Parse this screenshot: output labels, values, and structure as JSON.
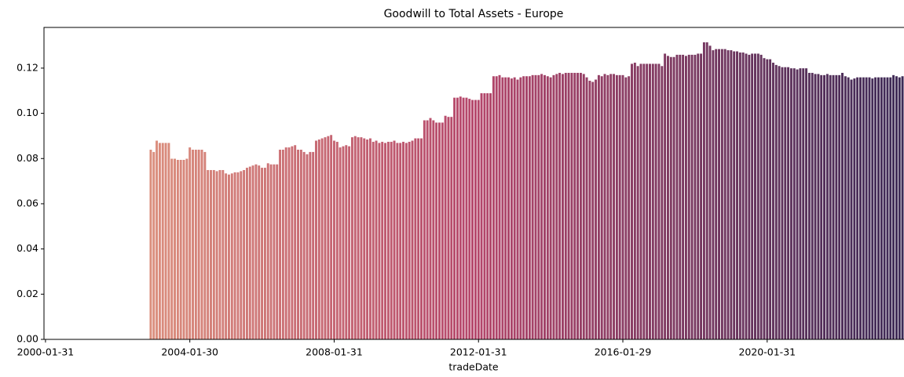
{
  "chart_data": {
    "type": "bar",
    "title": "Goodwill to Total Assets - Europe",
    "x_label": "tradeDate",
    "categories": [
      "2000-01-31",
      null,
      null,
      null,
      null,
      null,
      null,
      null,
      null,
      null,
      null,
      null,
      null,
      null,
      null,
      null,
      null,
      null,
      null,
      null,
      null,
      null,
      null,
      null,
      null,
      null,
      null,
      null,
      null,
      null,
      null,
      null,
      null,
      null,
      null,
      null,
      null,
      null,
      null,
      null,
      null,
      null,
      null,
      null,
      null,
      null,
      null,
      null,
      "2004-01-30",
      null,
      null,
      null,
      null,
      null,
      null,
      null,
      null,
      null,
      null,
      null,
      null,
      null,
      null,
      null,
      null,
      null,
      null,
      null,
      null,
      null,
      null,
      null,
      null,
      null,
      null,
      null,
      null,
      null,
      null,
      null,
      null,
      null,
      null,
      null,
      null,
      null,
      null,
      null,
      null,
      null,
      null,
      null,
      null,
      null,
      null,
      null,
      "2008-01-31",
      null,
      null,
      null,
      null,
      null,
      null,
      null,
      null,
      null,
      null,
      null,
      null,
      null,
      null,
      null,
      null,
      null,
      null,
      null,
      null,
      null,
      null,
      null,
      null,
      null,
      null,
      null,
      null,
      null,
      null,
      null,
      null,
      null,
      null,
      null,
      null,
      null,
      null,
      null,
      null,
      null,
      null,
      null,
      null,
      null,
      null,
      null,
      "2012-01-31",
      null,
      null,
      null,
      null,
      null,
      null,
      null,
      null,
      null,
      null,
      null,
      null,
      null,
      null,
      null,
      null,
      null,
      null,
      null,
      null,
      null,
      null,
      null,
      null,
      null,
      null,
      null,
      null,
      null,
      null,
      null,
      null,
      null,
      null,
      null,
      null,
      null,
      null,
      null,
      null,
      null,
      null,
      null,
      null,
      null,
      null,
      null,
      "2016-01-29",
      null,
      null,
      null,
      null,
      null,
      null,
      null,
      null,
      null,
      null,
      null,
      null,
      null,
      null,
      null,
      null,
      null,
      null,
      null,
      null,
      null,
      null,
      null,
      null,
      null,
      null,
      null,
      null,
      null,
      null,
      null,
      null,
      null,
      null,
      null,
      null,
      null,
      null,
      null,
      null,
      null,
      null,
      null,
      null,
      null,
      null,
      null,
      "2020-01-31",
      null,
      null,
      null,
      null,
      null,
      null,
      null,
      null,
      null,
      null,
      null,
      null,
      null,
      null,
      null,
      null,
      null,
      null,
      null,
      null,
      null,
      null,
      null,
      null,
      null,
      null,
      null,
      null,
      null,
      null,
      null,
      null,
      null,
      null,
      null,
      null,
      null,
      null,
      null,
      null,
      null,
      null,
      null,
      null,
      null
    ],
    "values": [
      null,
      null,
      null,
      null,
      null,
      null,
      null,
      null,
      null,
      null,
      null,
      null,
      null,
      null,
      null,
      null,
      null,
      null,
      null,
      null,
      null,
      null,
      null,
      null,
      null,
      null,
      null,
      null,
      null,
      null,
      null,
      null,
      null,
      null,
      null,
      0.084,
      0.083,
      0.088,
      0.087,
      0.087,
      0.087,
      0.087,
      0.08,
      0.08,
      0.0795,
      0.0795,
      0.0795,
      0.08,
      0.085,
      0.084,
      0.084,
      0.084,
      0.084,
      0.083,
      0.075,
      0.075,
      0.075,
      0.0745,
      0.075,
      0.075,
      0.0735,
      0.073,
      0.0735,
      0.074,
      0.074,
      0.0745,
      0.075,
      0.076,
      0.0765,
      0.077,
      0.0775,
      0.077,
      0.076,
      0.076,
      0.078,
      0.0775,
      0.0775,
      0.0775,
      0.084,
      0.084,
      0.085,
      0.085,
      0.0855,
      0.086,
      0.084,
      0.084,
      0.083,
      0.082,
      0.083,
      0.083,
      0.088,
      0.0885,
      0.089,
      0.0895,
      0.09,
      0.0905,
      0.088,
      0.0875,
      0.085,
      0.0855,
      0.086,
      0.0855,
      0.0895,
      0.09,
      0.0895,
      0.0895,
      0.089,
      0.0885,
      0.089,
      0.0875,
      0.088,
      0.087,
      0.0875,
      0.087,
      0.0875,
      0.0875,
      0.088,
      0.087,
      0.087,
      0.0875,
      0.087,
      0.0875,
      0.088,
      0.089,
      0.089,
      0.089,
      0.097,
      0.097,
      0.098,
      0.097,
      0.096,
      0.096,
      0.096,
      0.099,
      0.0985,
      0.0985,
      0.107,
      0.107,
      0.1075,
      0.107,
      0.107,
      0.1065,
      0.106,
      0.106,
      0.106,
      0.109,
      0.109,
      0.109,
      0.109,
      0.1165,
      0.1165,
      0.117,
      0.116,
      0.116,
      0.116,
      0.1155,
      0.116,
      0.115,
      0.116,
      0.1165,
      0.1165,
      0.1165,
      0.117,
      0.117,
      0.117,
      0.1175,
      0.117,
      0.1165,
      0.116,
      0.117,
      0.1175,
      0.118,
      0.1175,
      0.118,
      0.118,
      0.118,
      0.118,
      0.118,
      0.118,
      0.1175,
      0.116,
      0.1145,
      0.114,
      0.115,
      0.117,
      0.1165,
      0.1175,
      0.117,
      0.1175,
      0.1175,
      0.117,
      0.117,
      0.117,
      0.116,
      0.1165,
      0.122,
      0.1225,
      0.121,
      0.122,
      0.122,
      0.122,
      0.122,
      0.122,
      0.122,
      0.122,
      0.121,
      0.1265,
      0.1255,
      0.125,
      0.125,
      0.126,
      0.126,
      0.126,
      0.1255,
      0.126,
      0.126,
      0.126,
      0.1265,
      0.1265,
      0.1315,
      0.1315,
      0.13,
      0.128,
      0.1285,
      0.1285,
      0.1285,
      0.1285,
      0.128,
      0.128,
      0.1275,
      0.1275,
      0.127,
      0.127,
      0.1265,
      0.126,
      0.1265,
      0.1265,
      0.1265,
      0.126,
      0.1245,
      0.124,
      0.124,
      0.1225,
      0.1215,
      0.121,
      0.1205,
      0.1205,
      0.1205,
      0.12,
      0.12,
      0.1195,
      0.12,
      0.12,
      0.12,
      0.118,
      0.118,
      0.1175,
      0.1175,
      0.117,
      0.117,
      0.1175,
      0.117,
      0.117,
      0.117,
      0.117,
      0.118,
      0.1165,
      0.116,
      0.115,
      0.1155,
      0.116,
      0.116,
      0.116,
      0.116,
      0.116,
      0.1155,
      0.116,
      0.116,
      0.116,
      0.116,
      0.116,
      0.116,
      0.117,
      0.1165,
      0.116,
      0.1165
    ],
    "palette": [
      "#e7a582",
      "#b5476b",
      "#3d2a56"
    ],
    "ylim": [
      0,
      0.138
    ],
    "yticks": [
      {
        "value": 0,
        "label": "0.00"
      },
      {
        "value": 0.02,
        "label": "0.02"
      },
      {
        "value": 0.04,
        "label": "0.04"
      },
      {
        "value": 0.06,
        "label": "0.06"
      },
      {
        "value": 0.08,
        "label": "0.08"
      },
      {
        "value": 0.1,
        "label": "0.10"
      },
      {
        "value": 0.12,
        "label": "0.12"
      }
    ],
    "grid": false
  }
}
